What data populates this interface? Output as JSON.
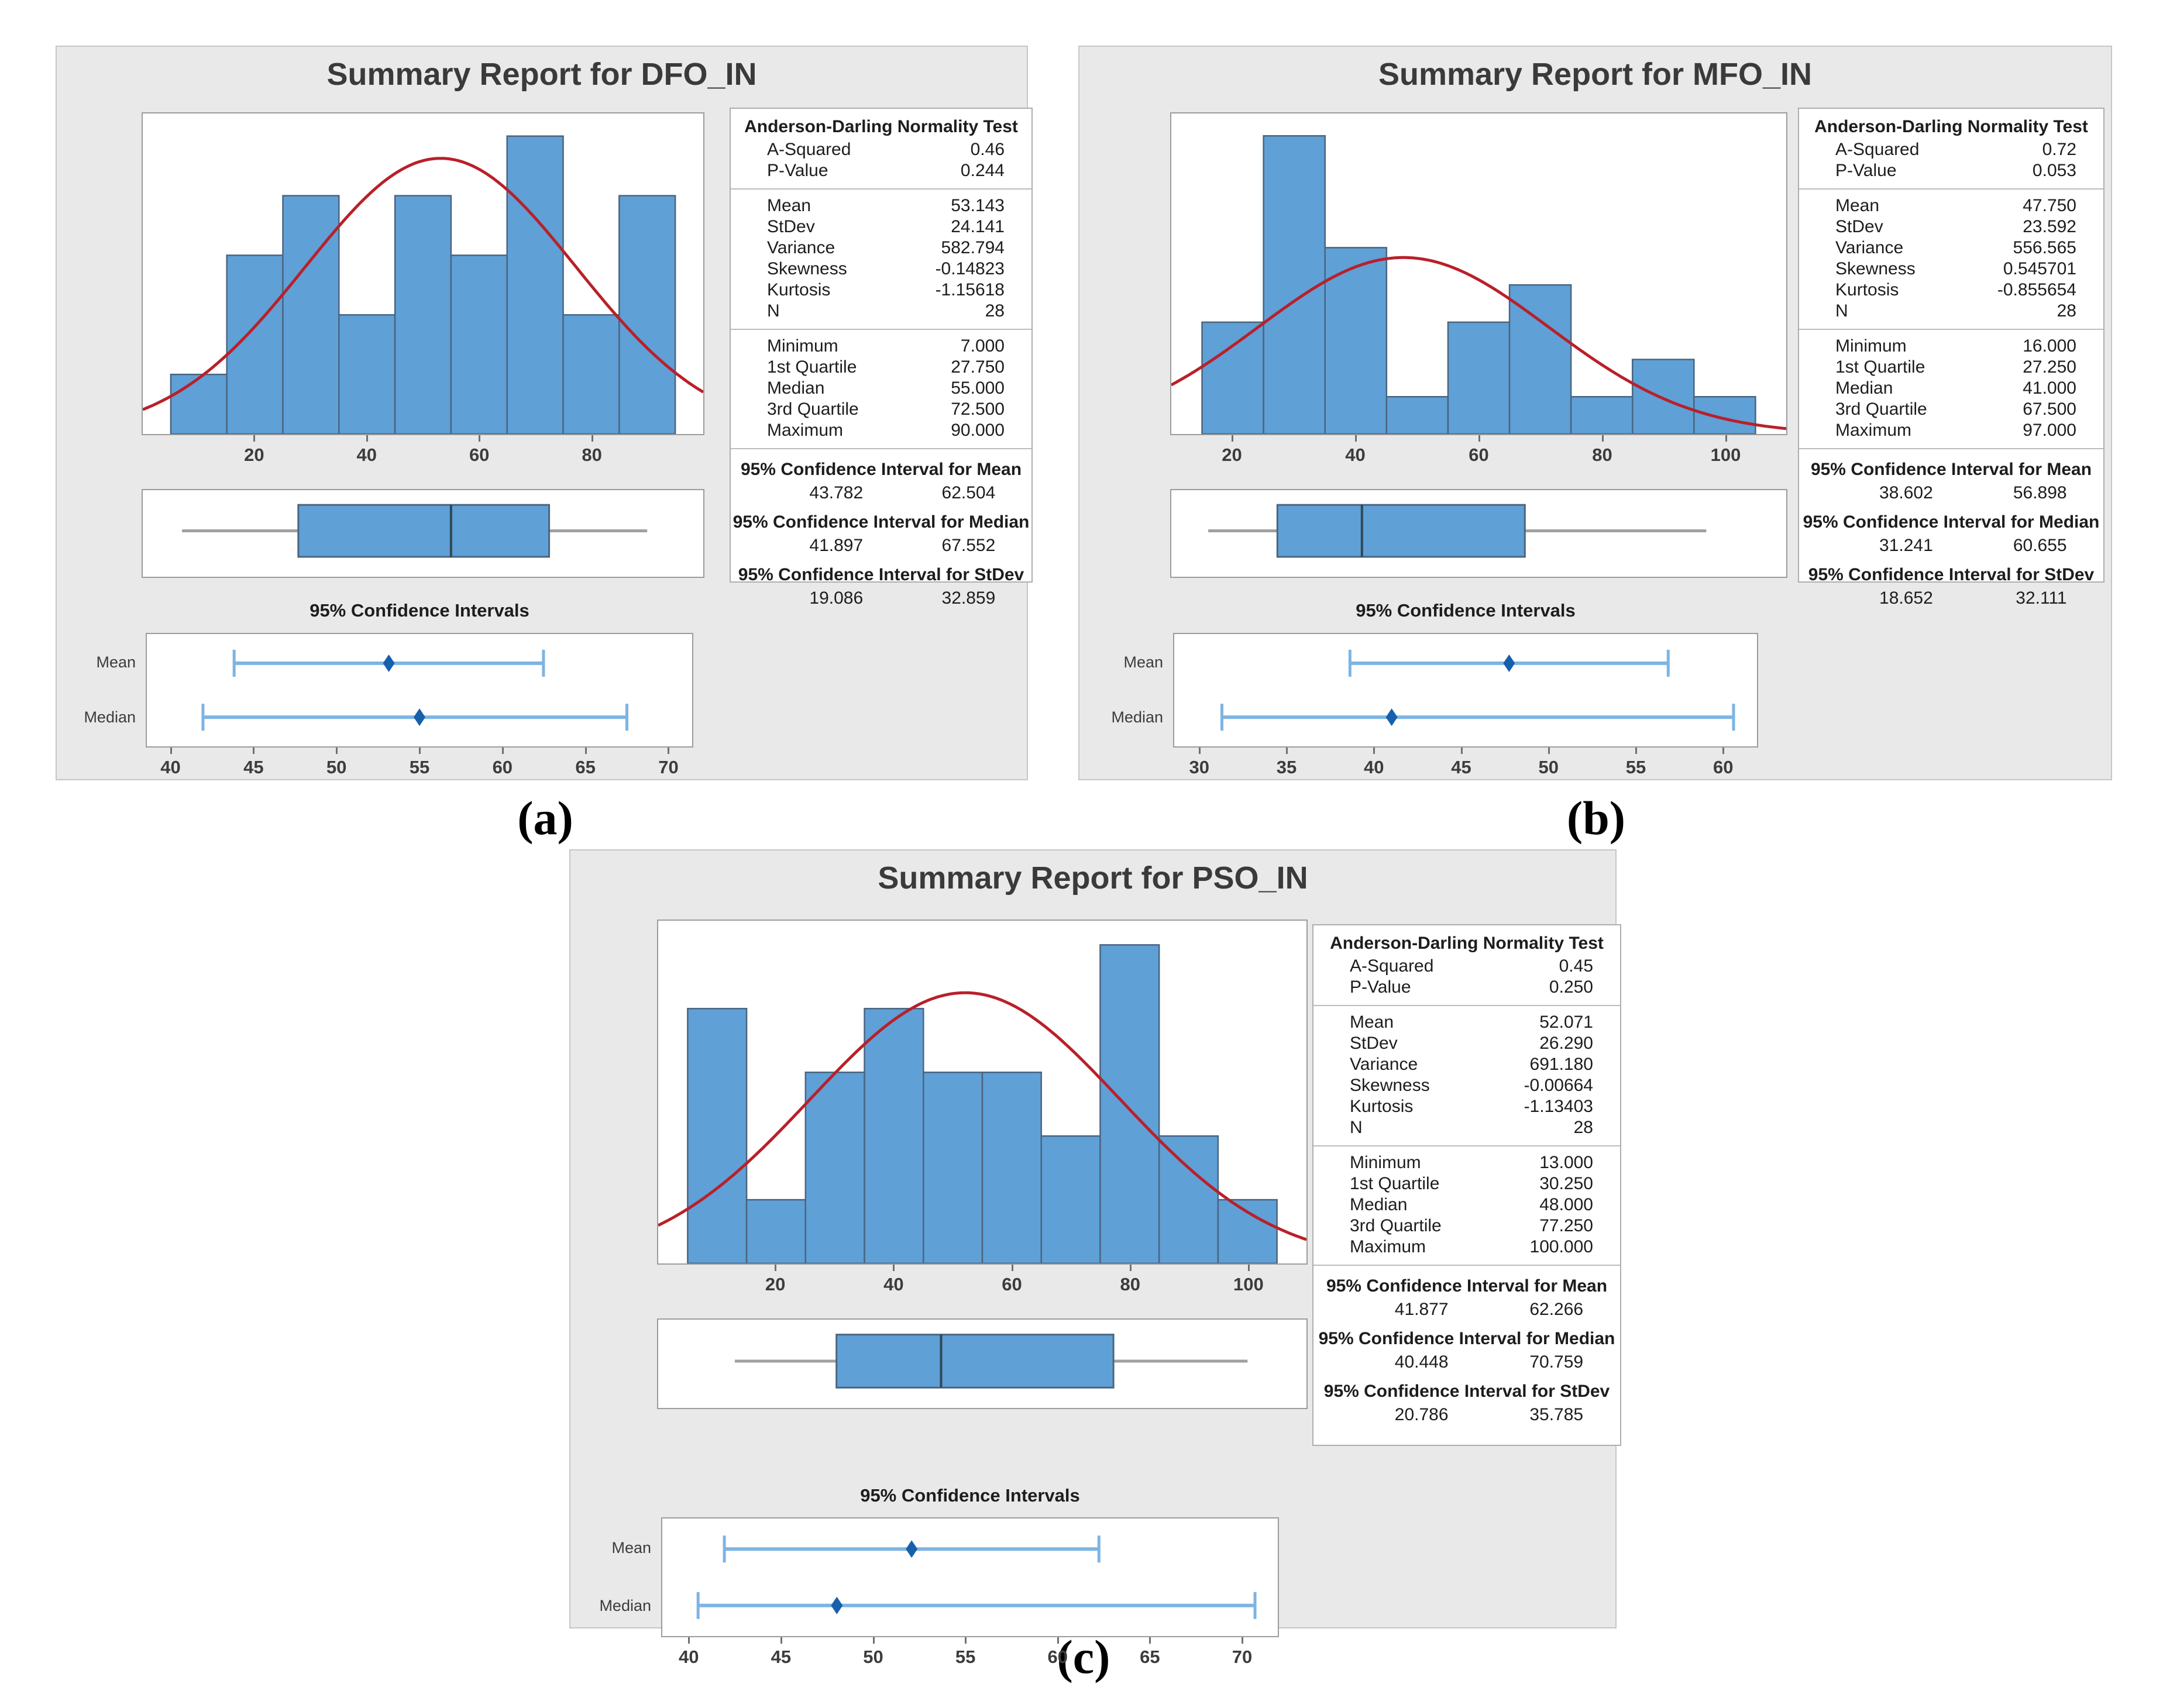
{
  "figure_labels": [
    "(a)",
    "(b)",
    "(c)"
  ],
  "colors": {
    "panel_bg": "#e9e9e9",
    "bar_fill": "#5fa0d6",
    "bar_edge": "#4a6580",
    "curve_red": "#b9202a",
    "whisker_gray": "#a0a0a0",
    "median_line": "#2f4858",
    "interval_blue": "#7db4e2",
    "marker_blue": "#1760ab",
    "text_dark": "#1d1d1d"
  },
  "panels": [
    {
      "title": "Summary Report for DFO_IN",
      "stats": {
        "ad_header": "Anderson-Darling Normality Test",
        "ad_rows": [
          [
            "A-Squared",
            "0.46"
          ],
          [
            "P-Value",
            "0.244"
          ]
        ],
        "desc_rows": [
          [
            "Mean",
            "53.143"
          ],
          [
            "StDev",
            "24.141"
          ],
          [
            "Variance",
            "582.794"
          ],
          [
            "Skewness",
            "-0.14823"
          ],
          [
            "Kurtosis",
            "-1.15618"
          ],
          [
            "N",
            "28"
          ]
        ],
        "quant_rows": [
          [
            "Minimum",
            "7.000"
          ],
          [
            "1st Quartile",
            "27.750"
          ],
          [
            "Median",
            "55.000"
          ],
          [
            "3rd Quartile",
            "72.500"
          ],
          [
            "Maximum",
            "90.000"
          ]
        ],
        "ci_sections": [
          {
            "heading": "95% Confidence Interval for Mean",
            "lo": "43.782",
            "hi": "62.504"
          },
          {
            "heading": "95% Confidence Interval for Median",
            "lo": "41.897",
            "hi": "67.552"
          },
          {
            "heading": "95% Confidence Interval for StDev",
            "lo": "19.086",
            "hi": "32.859"
          }
        ]
      }
    },
    {
      "title": "Summary Report for MFO_IN",
      "stats": {
        "ad_header": "Anderson-Darling Normality Test",
        "ad_rows": [
          [
            "A-Squared",
            "0.72"
          ],
          [
            "P-Value",
            "0.053"
          ]
        ],
        "desc_rows": [
          [
            "Mean",
            "47.750"
          ],
          [
            "StDev",
            "23.592"
          ],
          [
            "Variance",
            "556.565"
          ],
          [
            "Skewness",
            "0.545701"
          ],
          [
            "Kurtosis",
            "-0.855654"
          ],
          [
            "N",
            "28"
          ]
        ],
        "quant_rows": [
          [
            "Minimum",
            "16.000"
          ],
          [
            "1st Quartile",
            "27.250"
          ],
          [
            "Median",
            "41.000"
          ],
          [
            "3rd Quartile",
            "67.500"
          ],
          [
            "Maximum",
            "97.000"
          ]
        ],
        "ci_sections": [
          {
            "heading": "95% Confidence Interval for Mean",
            "lo": "38.602",
            "hi": "56.898"
          },
          {
            "heading": "95% Confidence Interval for Median",
            "lo": "31.241",
            "hi": "60.655"
          },
          {
            "heading": "95% Confidence Interval for StDev",
            "lo": "18.652",
            "hi": "32.111"
          }
        ]
      }
    },
    {
      "title": "Summary Report for PSO_IN",
      "stats": {
        "ad_header": "Anderson-Darling Normality Test",
        "ad_rows": [
          [
            "A-Squared",
            "0.45"
          ],
          [
            "P-Value",
            "0.250"
          ]
        ],
        "desc_rows": [
          [
            "Mean",
            "52.071"
          ],
          [
            "StDev",
            "26.290"
          ],
          [
            "Variance",
            "691.180"
          ],
          [
            "Skewness",
            "-0.00664"
          ],
          [
            "Kurtosis",
            "-1.13403"
          ],
          [
            "N",
            "28"
          ]
        ],
        "quant_rows": [
          [
            "Minimum",
            "13.000"
          ],
          [
            "1st Quartile",
            "30.250"
          ],
          [
            "Median",
            "48.000"
          ],
          [
            "3rd Quartile",
            "77.250"
          ],
          [
            "Maximum",
            "100.000"
          ]
        ],
        "ci_sections": [
          {
            "heading": "95% Confidence Interval for Mean",
            "lo": "41.877",
            "hi": "62.266"
          },
          {
            "heading": "95% Confidence Interval for Median",
            "lo": "40.448",
            "hi": "70.759"
          },
          {
            "heading": "95% Confidence Interval for StDev",
            "lo": "20.786",
            "hi": "35.785"
          }
        ]
      }
    }
  ],
  "chart_data": [
    {
      "type": "summary-report",
      "name": "DFO_IN",
      "histogram": {
        "type": "bar",
        "bin_start": 5,
        "bin_width": 10,
        "bin_edges": [
          5,
          15,
          25,
          35,
          45,
          55,
          65,
          75,
          85,
          95
        ],
        "counts": [
          1,
          3,
          4,
          2,
          4,
          3,
          5,
          2,
          4
        ],
        "n_total": 28,
        "x_ticks": [
          20,
          40,
          60,
          80
        ],
        "x_range": [
          0,
          100
        ],
        "ylim": [
          0,
          5.38
        ],
        "normal_curve": {
          "mean": 53.143,
          "stdev": 24.141,
          "n": 28
        }
      },
      "boxplot": {
        "type": "boxplot",
        "min": 7,
        "q1": 27.75,
        "median": 55,
        "q3": 72.5,
        "max": 90,
        "x_range": [
          0,
          100
        ]
      },
      "intervals": {
        "type": "interval-plot",
        "title": "95% Confidence Intervals",
        "x_ticks": [
          40,
          45,
          50,
          55,
          60,
          65,
          70
        ],
        "x_range": [
          38.5,
          71.5
        ],
        "rows": [
          {
            "label": "Mean",
            "low": 43.782,
            "high": 62.504,
            "point": 53.143
          },
          {
            "label": "Median",
            "low": 41.897,
            "high": 67.552,
            "point": 55.0
          }
        ]
      }
    },
    {
      "type": "summary-report",
      "name": "MFO_IN",
      "histogram": {
        "type": "bar",
        "bin_start": 15,
        "bin_width": 10,
        "bin_edges": [
          15,
          25,
          35,
          45,
          55,
          65,
          75,
          85,
          95,
          105
        ],
        "counts": [
          3,
          8,
          5,
          1,
          3,
          4,
          1,
          2,
          1
        ],
        "n_total": 28,
        "x_ticks": [
          20,
          40,
          60,
          80,
          100
        ],
        "x_range": [
          10,
          110
        ],
        "ylim": [
          0,
          8.6
        ],
        "normal_curve": {
          "mean": 47.75,
          "stdev": 23.592,
          "n": 28
        }
      },
      "boxplot": {
        "type": "boxplot",
        "min": 16,
        "q1": 27.25,
        "median": 41,
        "q3": 67.5,
        "max": 97,
        "x_range": [
          10,
          110
        ]
      },
      "intervals": {
        "type": "interval-plot",
        "title": "95% Confidence Intervals",
        "x_ticks": [
          30,
          35,
          40,
          45,
          50,
          55,
          60
        ],
        "x_range": [
          28.5,
          62
        ],
        "rows": [
          {
            "label": "Mean",
            "low": 38.602,
            "high": 56.898,
            "point": 47.75
          },
          {
            "label": "Median",
            "low": 31.241,
            "high": 60.655,
            "point": 41.0
          }
        ]
      }
    },
    {
      "type": "summary-report",
      "name": "PSO_IN",
      "histogram": {
        "type": "bar",
        "bin_start": 5,
        "bin_width": 10,
        "bin_edges": [
          5,
          15,
          25,
          35,
          45,
          55,
          65,
          75,
          85,
          95,
          105
        ],
        "counts": [
          4,
          1,
          3,
          4,
          3,
          3,
          2,
          5,
          2,
          1
        ],
        "n_total": 28,
        "x_ticks": [
          20,
          40,
          60,
          80,
          100
        ],
        "x_range": [
          0,
          110
        ],
        "ylim": [
          0,
          5.38
        ],
        "normal_curve": {
          "mean": 52.071,
          "stdev": 26.29,
          "n": 28
        }
      },
      "boxplot": {
        "type": "boxplot",
        "min": 13,
        "q1": 30.25,
        "median": 48,
        "q3": 77.25,
        "max": 100,
        "x_range": [
          0,
          110
        ]
      },
      "intervals": {
        "type": "interval-plot",
        "title": "95% Confidence Intervals",
        "x_ticks": [
          40,
          45,
          50,
          55,
          60,
          65,
          70
        ],
        "x_range": [
          38.5,
          72
        ],
        "rows": [
          {
            "label": "Mean",
            "low": 41.877,
            "high": 62.266,
            "point": 52.071
          },
          {
            "label": "Median",
            "low": 40.448,
            "high": 70.759,
            "point": 48.0
          }
        ]
      }
    }
  ]
}
